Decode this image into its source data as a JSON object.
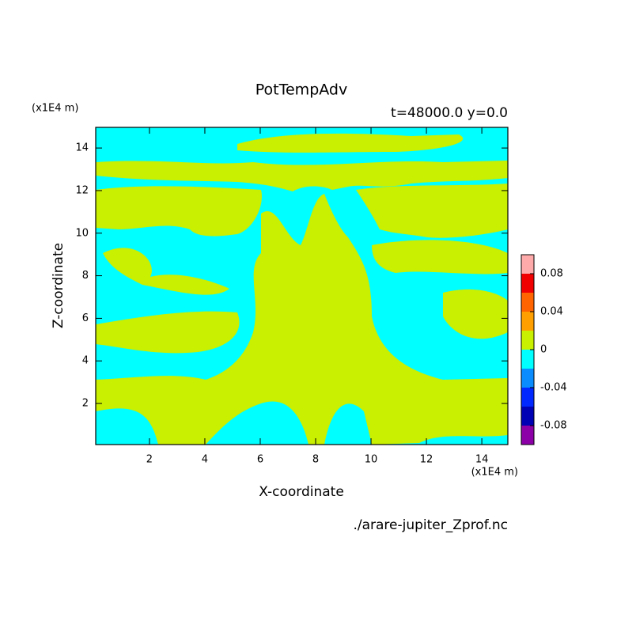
{
  "chart_data": {
    "type": "contour",
    "title": "PotTempAdv",
    "subtitle": "t=48000.0 y=0.0",
    "x_label": "X-coordinate",
    "y_label": "Z-coordinate",
    "x_unit": "(x1E4 m)",
    "y_unit": "(x1E4 m)",
    "source": "./arare-jupiter_Zprof.nc",
    "xlim": [
      0.06,
      14.94
    ],
    "xticks": [
      2,
      4,
      6,
      8,
      10,
      12,
      14
    ],
    "ylim": [
      0.07,
      14.97
    ],
    "yticks": [
      2,
      4,
      6,
      8,
      10,
      12,
      14
    ],
    "colorbar": {
      "levels": [
        -0.1,
        -0.08,
        -0.06,
        -0.04,
        -0.02,
        0,
        0.02,
        0.04,
        0.06,
        0.08,
        0.1
      ],
      "colors": [
        "#8c00a8",
        "#0000b4",
        "#0028ff",
        "#0a8cff",
        "#00ffff",
        "#c8f000",
        "#ffa000",
        "#ff6400",
        "#f00000",
        "#ffaaaa"
      ],
      "ticks": [
        -0.08,
        -0.04,
        0,
        0.04,
        0.08
      ]
    }
  }
}
